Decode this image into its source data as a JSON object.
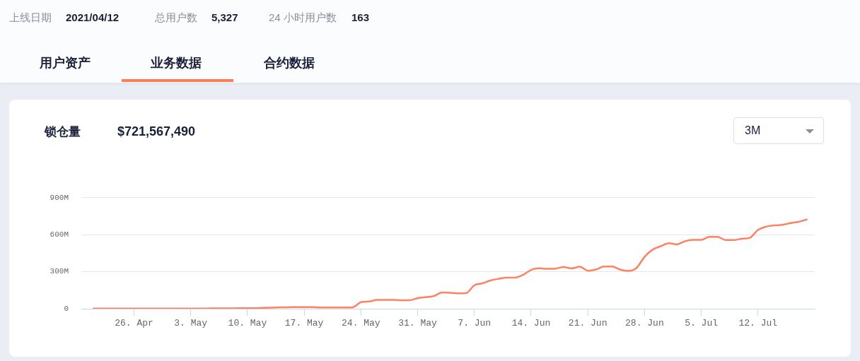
{
  "chart_data": {
    "type": "line",
    "title": "锁仓量",
    "subtitle": "$721,567,490",
    "annotations": [
      "上线日期",
      "2021/04/12",
      "总用户数",
      "5,327",
      "24 小时用户数",
      "163",
      "用户资产",
      "业务数据",
      "合约数据",
      "3M"
    ],
    "x": [
      "2021-04-21",
      "2021-04-22",
      "2021-04-23",
      "2021-04-24",
      "2021-04-25",
      "2021-04-26",
      "2021-04-27",
      "2021-04-28",
      "2021-04-29",
      "2021-04-30",
      "2021-05-01",
      "2021-05-02",
      "2021-05-03",
      "2021-05-04",
      "2021-05-05",
      "2021-05-06",
      "2021-05-07",
      "2021-05-08",
      "2021-05-09",
      "2021-05-10",
      "2021-05-11",
      "2021-05-12",
      "2021-05-13",
      "2021-05-14",
      "2021-05-15",
      "2021-05-16",
      "2021-05-17",
      "2021-05-18",
      "2021-05-19",
      "2021-05-20",
      "2021-05-21",
      "2021-05-22",
      "2021-05-23",
      "2021-05-24",
      "2021-05-25",
      "2021-05-26",
      "2021-05-27",
      "2021-05-28",
      "2021-05-29",
      "2021-05-30",
      "2021-05-31",
      "2021-06-01",
      "2021-06-02",
      "2021-06-03",
      "2021-06-04",
      "2021-06-05",
      "2021-06-06",
      "2021-06-07",
      "2021-06-08",
      "2021-06-09",
      "2021-06-10",
      "2021-06-11",
      "2021-06-12",
      "2021-06-13",
      "2021-06-14",
      "2021-06-15",
      "2021-06-16",
      "2021-06-17",
      "2021-06-18",
      "2021-06-19",
      "2021-06-20",
      "2021-06-21",
      "2021-06-22",
      "2021-06-23",
      "2021-06-24",
      "2021-06-25",
      "2021-06-26",
      "2021-06-27",
      "2021-06-28",
      "2021-06-29",
      "2021-06-30",
      "2021-07-01",
      "2021-07-02",
      "2021-07-03",
      "2021-07-04",
      "2021-07-05",
      "2021-07-06",
      "2021-07-07",
      "2021-07-08",
      "2021-07-09",
      "2021-07-10",
      "2021-07-11",
      "2021-07-12",
      "2021-07-13",
      "2021-07-14",
      "2021-07-15",
      "2021-07-16",
      "2021-07-17",
      "2021-07-18"
    ],
    "values": [
      1,
      1,
      1,
      1,
      1,
      1,
      1,
      1,
      1,
      1,
      1,
      1,
      1,
      2,
      2,
      3,
      3,
      3,
      4,
      4,
      5,
      7,
      9,
      11,
      12,
      13,
      13,
      13,
      10,
      10,
      10,
      10,
      12,
      53,
      58,
      71,
      72,
      72,
      69,
      69,
      86,
      94,
      102,
      132,
      129,
      124,
      127,
      190,
      206,
      229,
      242,
      251,
      252,
      274,
      314,
      327,
      323,
      325,
      337,
      326,
      340,
      308,
      317,
      341,
      341,
      316,
      306,
      330,
      420,
      478,
      506,
      531,
      521,
      547,
      558,
      558,
      582,
      582,
      556,
      556,
      566,
      574,
      638,
      664,
      675,
      679,
      693,
      703,
      722
    ],
    "color": "#ff8062",
    "xlim": [
      "2021-04-19T12:00",
      "2021-07-19T00:00"
    ],
    "xticks": [
      {
        "value": "2021-04-26",
        "label": "26. Apr"
      },
      {
        "value": "2021-05-03",
        "label": "3. May"
      },
      {
        "value": "2021-05-10",
        "label": "10. May"
      },
      {
        "value": "2021-05-17",
        "label": "17. May"
      },
      {
        "value": "2021-05-24",
        "label": "24. May"
      },
      {
        "value": "2021-05-31",
        "label": "31. May"
      },
      {
        "value": "2021-06-07",
        "label": "7. Jun"
      },
      {
        "value": "2021-06-14",
        "label": "14. Jun"
      },
      {
        "value": "2021-06-21",
        "label": "21. Jun"
      },
      {
        "value": "2021-06-28",
        "label": "28. Jun"
      },
      {
        "value": "2021-07-05",
        "label": "5. Jul"
      },
      {
        "value": "2021-07-12",
        "label": "12. Jul"
      }
    ],
    "ylim": [
      0,
      900
    ],
    "yticks": [
      0,
      {
        "value": 300,
        "label": "300M"
      },
      {
        "value": 600,
        "label": "600M"
      },
      {
        "value": 900,
        "label": "900M"
      }
    ],
    "grid": "y",
    "marker": "none",
    "line_style": "solid"
  }
}
